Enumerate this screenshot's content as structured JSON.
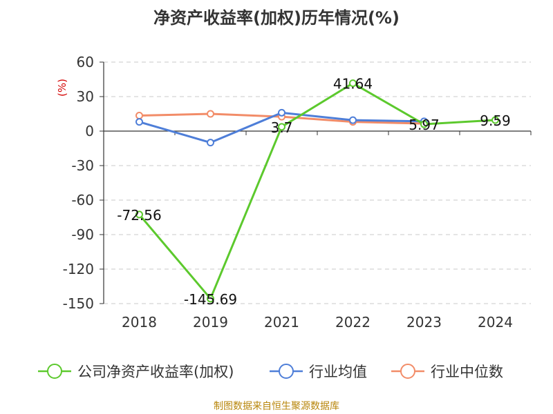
{
  "chart_data": {
    "type": "line",
    "title": "净资产收益率(加权)历年情况(%)",
    "ylabel": "(%)",
    "xlabel": "",
    "categories": [
      "2018",
      "2019",
      "2021",
      "2022",
      "2023",
      "2024"
    ],
    "ylim": [
      -150,
      60
    ],
    "yticks": [
      60,
      30,
      0,
      -30,
      -60,
      -90,
      -120,
      -150
    ],
    "grid": "horizontal-dashed",
    "legend_position": "bottom",
    "series": [
      {
        "name": "公司净资产收益率(加权)",
        "color": "#5cc92d",
        "values": [
          -72.56,
          -145.69,
          3.7,
          41.64,
          5.97,
          9.59
        ],
        "labels": [
          "-72.56",
          "-145.69",
          "3.7",
          "41.64",
          "5.97",
          "9.59"
        ]
      },
      {
        "name": "行业均值",
        "color": "#4e7ed8",
        "values": [
          8,
          -10,
          16,
          9.5,
          8.5,
          null
        ]
      },
      {
        "name": "行业中位数",
        "color": "#f28c68",
        "values": [
          13.5,
          15,
          12.5,
          8,
          6.5,
          null
        ]
      }
    ]
  },
  "source": "制图数据来自恒生聚源数据库"
}
